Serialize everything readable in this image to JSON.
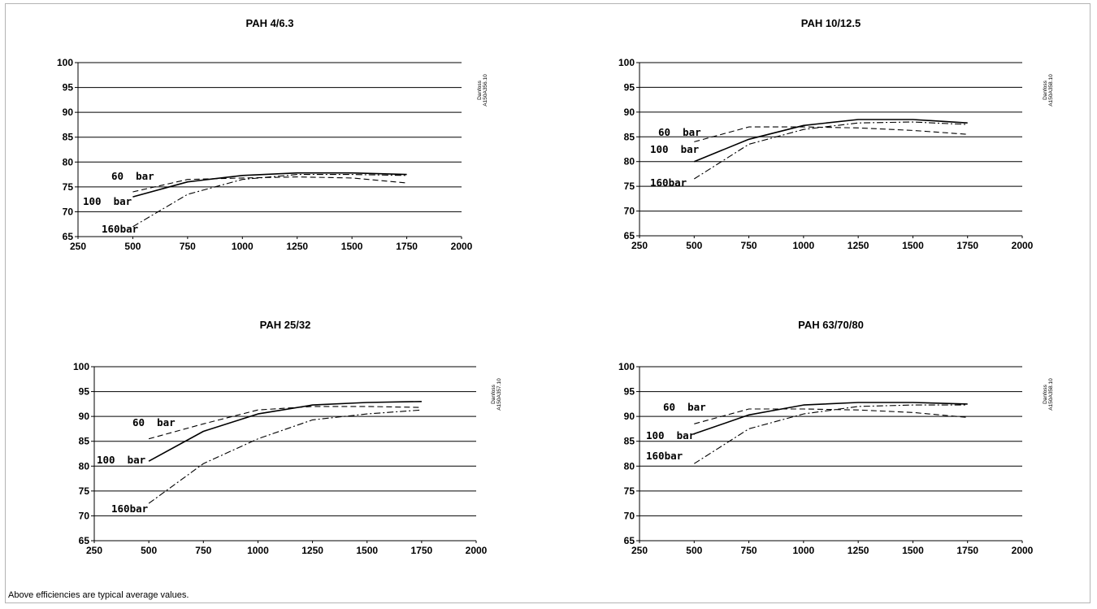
{
  "footnote": "Above efficiencies are typical average values.",
  "chart_data": [
    {
      "type": "line",
      "title": "PAH 4/6.3",
      "watermark": [
        "Danfoss",
        "A150A356.10"
      ],
      "xlim": [
        250,
        2000
      ],
      "ylim": [
        65,
        100
      ],
      "xticks": [
        "250",
        "500",
        "750",
        "1000",
        "1250",
        "1500",
        "1750",
        "2000"
      ],
      "yticks": [
        "65",
        "70",
        "75",
        "80",
        "85",
        "90",
        "95",
        "100"
      ],
      "grid": true,
      "series": [
        {
          "name": "60  bar",
          "style": "dashed",
          "x": [
            500,
            750,
            1000,
            1250,
            1500,
            1750
          ],
          "y": [
            74,
            76.5,
            76.8,
            77,
            76.8,
            75.8
          ]
        },
        {
          "name": "100  bar",
          "style": "solid",
          "x": [
            500,
            750,
            1000,
            1250,
            1500,
            1750
          ],
          "y": [
            73,
            76,
            77.3,
            77.8,
            77.8,
            77.5
          ]
        },
        {
          "name": "160bar",
          "style": "dashdot",
          "x": [
            500,
            750,
            1000,
            1250,
            1500,
            1750
          ],
          "y": [
            67,
            73.5,
            76.5,
            77.5,
            77.5,
            77.3
          ]
        }
      ]
    },
    {
      "type": "line",
      "title": "PAH 10/12.5",
      "watermark": [
        "Danfoss",
        "A150A358.10"
      ],
      "xlim": [
        250,
        2000
      ],
      "ylim": [
        65,
        100
      ],
      "xticks": [
        "250",
        "500",
        "750",
        "1000",
        "1250",
        "1500",
        "1750",
        "2000"
      ],
      "yticks": [
        "65",
        "70",
        "75",
        "80",
        "85",
        "90",
        "95",
        "100"
      ],
      "grid": true,
      "series": [
        {
          "name": "60  bar",
          "style": "dashed",
          "x": [
            500,
            750,
            1000,
            1250,
            1500,
            1750
          ],
          "y": [
            84,
            87,
            87,
            86.8,
            86.3,
            85.5
          ]
        },
        {
          "name": "100  bar",
          "style": "solid",
          "x": [
            500,
            750,
            1000,
            1250,
            1500,
            1750
          ],
          "y": [
            80,
            84.5,
            87.3,
            88.5,
            88.5,
            87.8
          ]
        },
        {
          "name": "160bar",
          "style": "dashdot",
          "x": [
            500,
            750,
            1000,
            1250,
            1500,
            1750
          ],
          "y": [
            76.5,
            83.5,
            86.5,
            87.8,
            88,
            87.5
          ]
        }
      ]
    },
    {
      "type": "line",
      "title": "PAH 25/32",
      "watermark": [
        "Danfoss",
        "A150A357.10"
      ],
      "xlim": [
        250,
        2000
      ],
      "ylim": [
        65,
        100
      ],
      "xticks": [
        "250",
        "500",
        "750",
        "1000",
        "1250",
        "1500",
        "1750",
        "2000"
      ],
      "yticks": [
        "65",
        "70",
        "75",
        "80",
        "85",
        "90",
        "95",
        "100"
      ],
      "grid": true,
      "series": [
        {
          "name": "60  bar",
          "style": "dashed",
          "x": [
            500,
            750,
            1000,
            1250,
            1500,
            1750
          ],
          "y": [
            85.5,
            88.5,
            91.3,
            92,
            92,
            91.8
          ]
        },
        {
          "name": "100  bar",
          "style": "solid",
          "x": [
            500,
            750,
            1000,
            1250,
            1500,
            1750
          ],
          "y": [
            81,
            87,
            90.5,
            92.3,
            92.8,
            93
          ]
        },
        {
          "name": "160bar",
          "style": "dashdot",
          "x": [
            500,
            750,
            1000,
            1250,
            1500,
            1750
          ],
          "y": [
            72.5,
            80.5,
            85.5,
            89.3,
            90.5,
            91.3
          ]
        }
      ]
    },
    {
      "type": "line",
      "title": "PAH 63/70/80",
      "watermark": [
        "Danfoss",
        "A150A358.10"
      ],
      "xlim": [
        250,
        2000
      ],
      "ylim": [
        65,
        100
      ],
      "xticks": [
        "250",
        "500",
        "750",
        "1000",
        "1250",
        "1500",
        "1750",
        "2000"
      ],
      "yticks": [
        "65",
        "70",
        "75",
        "80",
        "85",
        "90",
        "95",
        "100"
      ],
      "grid": true,
      "series": [
        {
          "name": "60  bar",
          "style": "dashed",
          "x": [
            500,
            750,
            1000,
            1250,
            1500,
            1750
          ],
          "y": [
            88.5,
            91.5,
            91.5,
            91.3,
            90.8,
            89.8
          ]
        },
        {
          "name": "100  bar",
          "style": "solid",
          "x": [
            500,
            750,
            1000,
            1250,
            1500,
            1750
          ],
          "y": [
            86.5,
            90.3,
            92.3,
            92.8,
            92.8,
            92.5
          ]
        },
        {
          "name": "160bar",
          "style": "dashdot",
          "x": [
            500,
            750,
            1000,
            1250,
            1500,
            1750
          ],
          "y": [
            80.5,
            87.5,
            90.5,
            92,
            92.3,
            92.3
          ]
        }
      ]
    }
  ]
}
